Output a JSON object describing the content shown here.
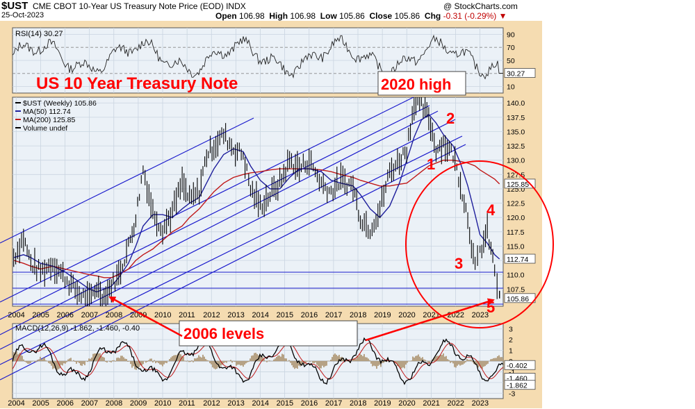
{
  "header": {
    "symbol": "$UST",
    "title": "CME CBOT 10-Year US Treasury Note Price (EOD) INDX",
    "date": "25-Oct-2023",
    "brand": "@ StockCharts.com",
    "open_label": "Open",
    "open": "106.98",
    "high_label": "High",
    "high": "106.98",
    "low_label": "Low",
    "low": "105.86",
    "close_label": "Close",
    "close": "105.86",
    "chg_label": "Chg",
    "chg": "-0.31 (-0.29%)"
  },
  "rsi_panel": {
    "label": "RSI(14) 30.27",
    "current": "30.27",
    "ticks": [
      "90",
      "70",
      "50",
      "30",
      "10"
    ]
  },
  "price_panel": {
    "legend": [
      "$UST (Weekly) 105.86",
      "MA(50) 112.74",
      "MA(200) 125.85",
      "Volume undef"
    ],
    "ticks": [
      "140.0",
      "137.5",
      "135.0",
      "132.5",
      "130.0",
      "127.5",
      "125.0",
      "122.5",
      "120.0",
      "117.5",
      "115.0",
      "112.5",
      "110.0",
      "107.5"
    ],
    "value_tags": [
      "125.85",
      "112.74",
      "105.86"
    ]
  },
  "macd_panel": {
    "label": "MACD(12,26,9) -1.862, -1.460, -0.40",
    "ticks": [
      "3",
      "2",
      "1",
      "0",
      "-1",
      "-2",
      "-3"
    ],
    "value_tags": [
      "-0.402",
      "-1.460",
      "-1.862"
    ]
  },
  "annotations": {
    "title_main": "US 10 Year Treasury Note",
    "high_2020": "2020 high",
    "levels_2006": "2006 levels",
    "wave_1": "1",
    "wave_2": "2",
    "wave_3": "3",
    "wave_4": "4",
    "wave_5": "5"
  },
  "colors": {
    "panel_bg": "#ebf1f7",
    "frame_bg": "#f5dcb1",
    "price_bar": "#000000",
    "ma50": "#1f1f9c",
    "ma200": "#c01818",
    "channel": "#1a1acc",
    "annotation": "#ff0000",
    "macd_hist": "#b09a78"
  },
  "chart_data": {
    "type": "line",
    "title": "CME CBOT 10-Year US Treasury Note Price (EOD) INDX",
    "x_axis_years": [
      "2004",
      "2005",
      "2006",
      "2007",
      "2008",
      "2009",
      "2010",
      "2011",
      "2012",
      "2013",
      "2014",
      "2015",
      "2016",
      "2017",
      "2018",
      "2019",
      "2020",
      "2021",
      "2022",
      "2023"
    ],
    "price": {
      "ylim": [
        104.5,
        141.0
      ],
      "x": [
        2003.9,
        2004.3,
        2004.6,
        2005.0,
        2005.5,
        2006.0,
        2006.5,
        2007.0,
        2007.3,
        2007.6,
        2007.9,
        2008.2,
        2008.6,
        2008.9,
        2009.2,
        2009.6,
        2010.0,
        2010.4,
        2010.8,
        2011.1,
        2011.5,
        2011.8,
        2012.1,
        2012.5,
        2012.9,
        2013.3,
        2013.6,
        2014.0,
        2014.4,
        2014.8,
        2015.2,
        2015.6,
        2016.0,
        2016.5,
        2016.9,
        2017.3,
        2017.8,
        2018.1,
        2018.5,
        2018.9,
        2019.3,
        2019.7,
        2020.0,
        2020.3,
        2020.6,
        2020.9,
        2021.2,
        2021.5,
        2021.9,
        2022.2,
        2022.5,
        2022.8,
        2023.0,
        2023.3,
        2023.6,
        2023.8
      ],
      "series": [
        {
          "name": "$UST (Weekly) 105.86",
          "values": [
            113.0,
            116.5,
            112.0,
            110.5,
            112.0,
            109.5,
            107.0,
            105.5,
            108.0,
            106.0,
            108.0,
            110.0,
            115.0,
            120.0,
            128.5,
            121.0,
            118.0,
            121.0,
            126.0,
            123.0,
            124.5,
            131.0,
            132.5,
            134.5,
            132.0,
            131.0,
            125.0,
            122.0,
            124.0,
            126.0,
            130.0,
            128.5,
            130.0,
            126.0,
            124.5,
            126.5,
            125.5,
            120.0,
            118.0,
            121.5,
            128.0,
            130.0,
            132.0,
            140.0,
            139.5,
            137.5,
            132.0,
            133.0,
            131.0,
            126.0,
            120.0,
            111.0,
            114.0,
            117.5,
            111.0,
            105.86
          ]
        },
        {
          "name": "MA(50) 112.74",
          "values": [
            113.0,
            113.5,
            113.0,
            112.0,
            111.5,
            110.5,
            109.0,
            107.5,
            107.0,
            107.5,
            108.0,
            109.5,
            112.0,
            115.0,
            118.5,
            120.5,
            120.5,
            120.0,
            121.5,
            122.5,
            123.5,
            126.0,
            128.5,
            131.0,
            132.0,
            131.5,
            129.0,
            126.5,
            125.0,
            125.0,
            127.0,
            128.5,
            128.5,
            128.0,
            126.5,
            126.0,
            125.5,
            124.0,
            121.5,
            120.0,
            122.0,
            126.0,
            130.0,
            134.0,
            137.0,
            138.0,
            136.5,
            134.5,
            132.5,
            129.5,
            125.5,
            120.5,
            117.0,
            115.5,
            113.5,
            112.74
          ]
        },
        {
          "name": "MA(200) 125.85",
          "values": [
            112.5,
            112.0,
            111.5,
            111.0,
            111.5,
            111.0,
            110.5,
            110.0,
            109.8,
            109.5,
            109.5,
            110.0,
            111.0,
            112.5,
            113.5,
            114.5,
            116.0,
            117.5,
            118.5,
            120.0,
            121.5,
            123.0,
            124.5,
            126.0,
            127.0,
            127.5,
            127.8,
            128.0,
            128.3,
            128.5,
            128.5,
            128.5,
            128.5,
            128.3,
            128.0,
            127.5,
            127.0,
            126.5,
            126.0,
            125.5,
            125.5,
            125.8,
            126.0,
            127.0,
            128.0,
            129.0,
            129.5,
            130.0,
            130.0,
            129.8,
            129.5,
            129.0,
            128.3,
            127.5,
            126.7,
            125.85
          ]
        }
      ]
    },
    "rsi": {
      "ylim": [
        0,
        100
      ],
      "current": 30.27
    },
    "macd": {
      "ylim": [
        -3.5,
        3.5
      ],
      "values": {
        "macd": -1.862,
        "signal": -1.46,
        "histogram": -0.402
      }
    }
  }
}
